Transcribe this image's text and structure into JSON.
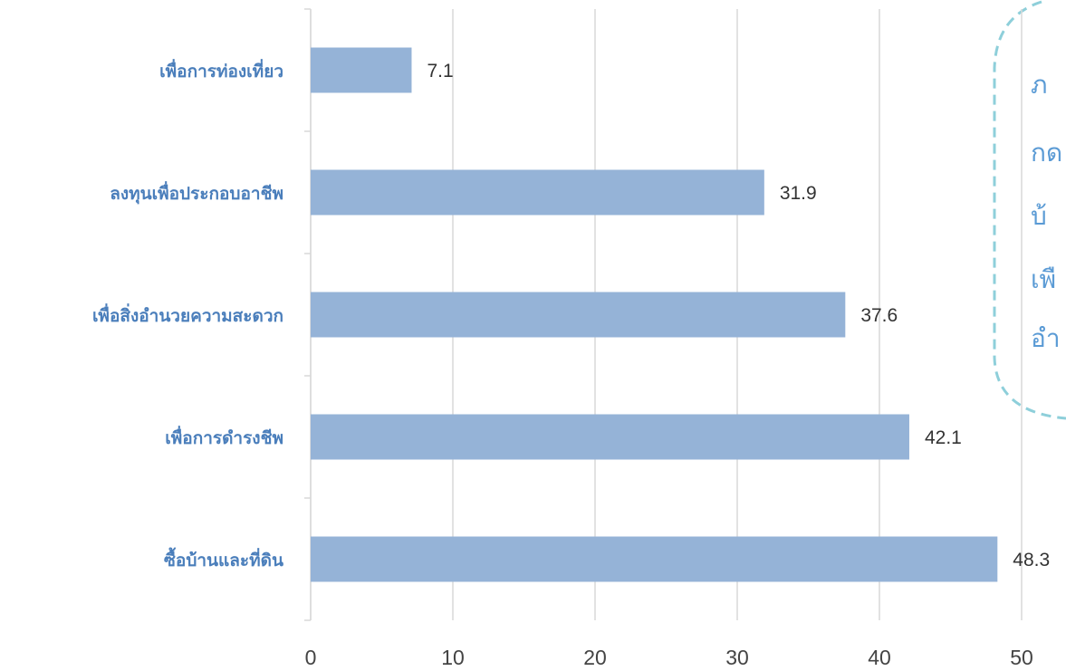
{
  "chart_data": {
    "type": "bar",
    "orientation": "horizontal",
    "categories": [
      "เพื่อการท่องเที่ยว",
      "ลงทุนเพื่อประกอบอาชีพ",
      "เพื่อสิ่งอำนวยความสะดวก",
      "เพื่อการดำรงชีพ",
      "ซื้อบ้านและที่ดิน"
    ],
    "values": [
      7.1,
      31.9,
      37.6,
      42.1,
      48.3
    ],
    "color": "#95b3d7",
    "xlim": [
      0,
      50
    ],
    "xticks": [
      0,
      10,
      20,
      30,
      40,
      50
    ],
    "grid": true,
    "annotation": [
      "ภ",
      "กด",
      "บ้",
      "เพื",
      "อำ"
    ]
  }
}
